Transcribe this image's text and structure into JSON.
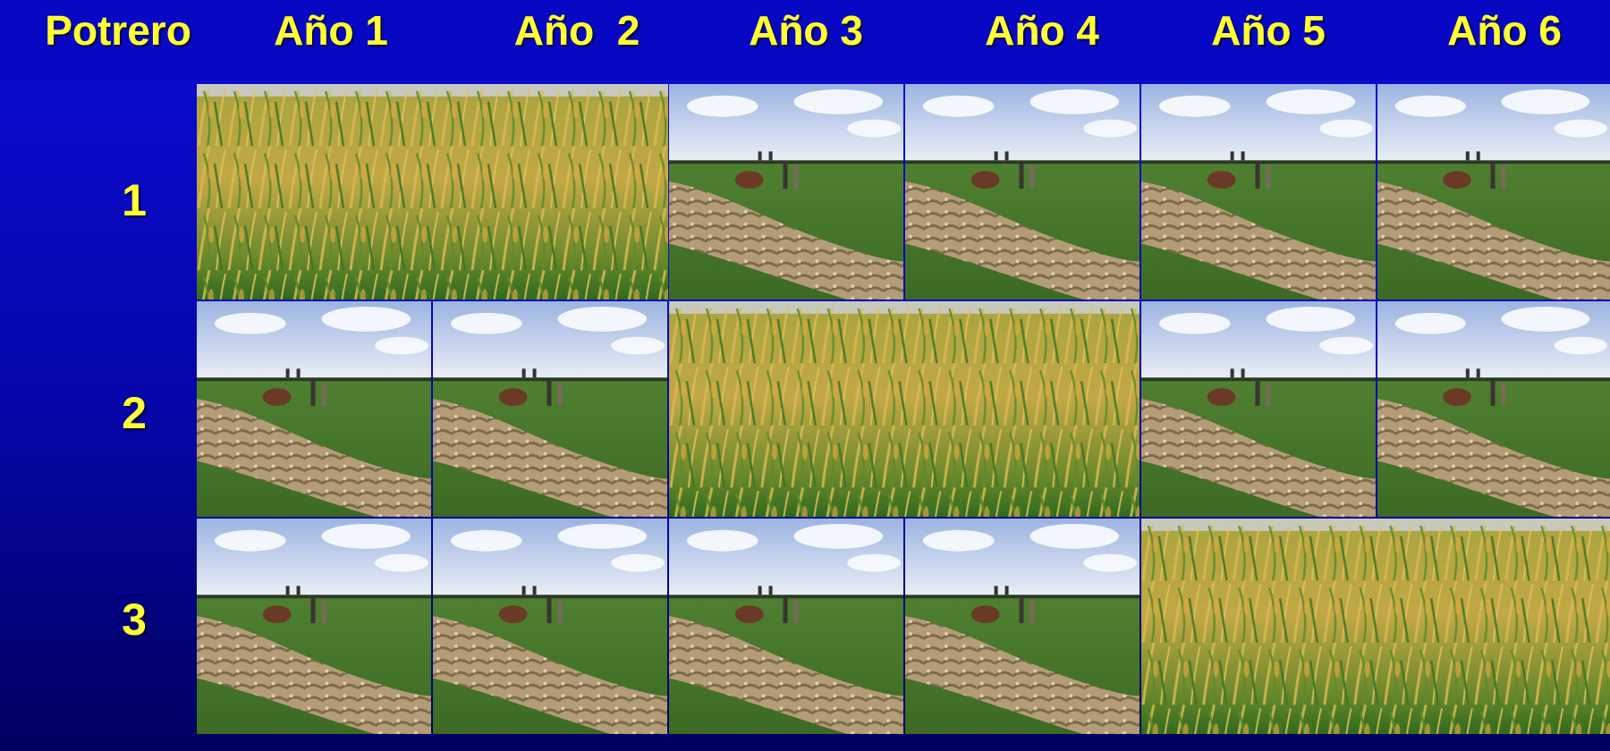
{
  "header": {
    "row_label": "Potrero",
    "years": [
      "Año 1",
      "Año  2",
      "Año 3",
      "Año 4",
      "Año 5",
      "Año 6"
    ]
  },
  "rows": [
    "1",
    "2",
    "3"
  ]
}
